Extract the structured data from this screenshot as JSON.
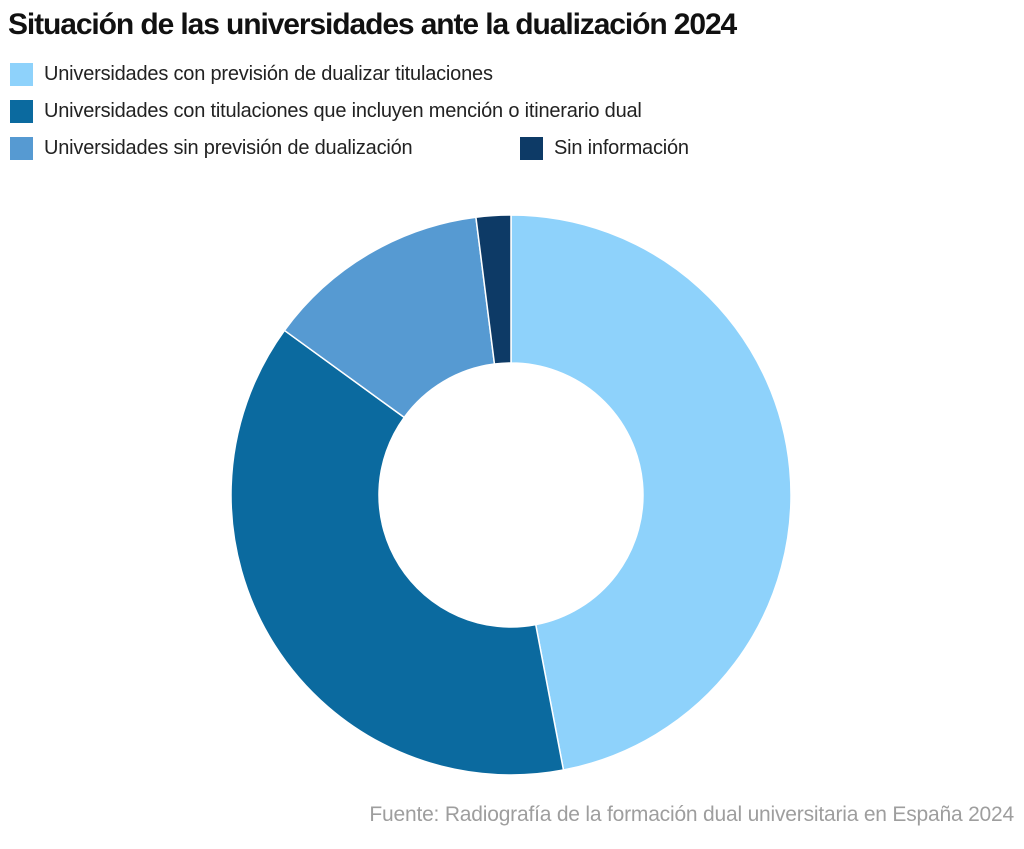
{
  "chart_data": {
    "type": "pie",
    "subtype": "donut",
    "title": "Situación de las universidades ante la dualización 2024",
    "unit": "percent",
    "series": [
      {
        "name": "Universidades con previsión de dualizar titulaciones",
        "value": 47,
        "color": "#8ED2FB"
      },
      {
        "name": "Universidades con titulaciones que incluyen mención o itinerario dual",
        "value": 38,
        "color": "#0B6A9F"
      },
      {
        "name": "Universidades sin previsión de dualización",
        "value": 13,
        "color": "#569AD2"
      },
      {
        "name": "Sin información",
        "value": 2,
        "color": "#0D3A66"
      }
    ],
    "start_angle_deg": 0,
    "direction": "clockwise",
    "inner_radius_ratio": 0.47,
    "slice_separator_color": "#FFFFFF",
    "legend_position": "top-left",
    "source": "Fuente: Radiografía de la formación dual universitaria en España 2024"
  }
}
